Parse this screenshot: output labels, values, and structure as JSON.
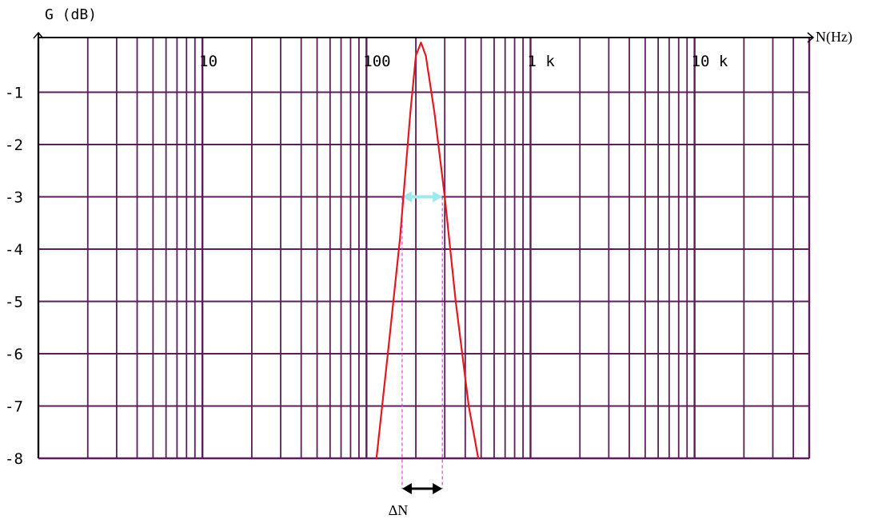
{
  "chart_data": {
    "type": "line",
    "title": "",
    "xlabel": "N(Hz)",
    "ylabel": "G (dB)",
    "x_scale": "log",
    "xlim": [
      1,
      50000
    ],
    "ylim": [
      -8,
      0
    ],
    "grid": true,
    "x_tick_labels": [
      {
        "label": "10",
        "value": 10
      },
      {
        "label": "100",
        "value": 100
      },
      {
        "label": "1 k",
        "value": 1000
      },
      {
        "label": "10 k",
        "value": 10000
      }
    ],
    "y_ticks": [
      -1,
      -2,
      -3,
      -4,
      -5,
      -6,
      -7,
      -8
    ],
    "y_tick_labels": [
      "-1",
      "-2",
      "-3",
      "-4",
      "-5",
      "-6",
      "-7",
      "-8"
    ],
    "series": [
      {
        "color": "#e4181f",
        "x": [
          115,
          135,
          160,
          185,
          200,
          215,
          230,
          260,
          300,
          350,
          420,
          480
        ],
        "y": [
          -8.0,
          -6.0,
          -3.8,
          -1.4,
          -0.3,
          -0.05,
          -0.3,
          -1.4,
          -3.0,
          -5.0,
          -7.0,
          -8.0
        ]
      }
    ],
    "bandwidth": {
      "level_db": -3,
      "x_low": 165,
      "x_high": 290,
      "label": "ΔN",
      "marker_color": "#9fe8ee",
      "guide_color": "#e040e0",
      "arrow_color": "#000000"
    },
    "colors": {
      "grid": "#5a1e58",
      "axis": "#000000"
    }
  }
}
